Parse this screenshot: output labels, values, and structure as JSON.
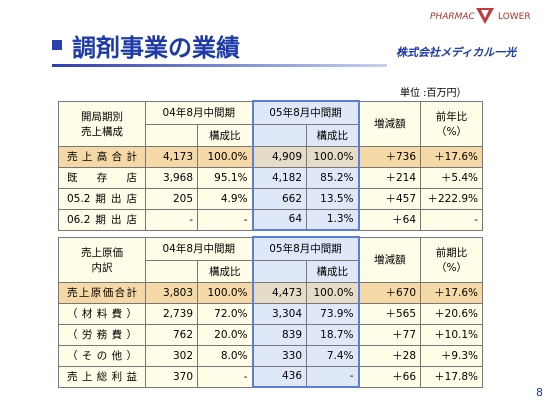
{
  "header": {
    "title": "調剤事業の業績",
    "logo_top": "PHARMAC",
    "logo_side": "LOWER",
    "company": "株式会社メディカル一光"
  },
  "unit": "単位 :百万円）",
  "tables": [
    {
      "header": {
        "label": [
          "開局期別",
          "売上構成"
        ],
        "period1": "04年8月中間期",
        "ratio1": "構成比",
        "period2": "05年8月中間期",
        "ratio2": "構成比",
        "change": "増減額",
        "growth": [
          "前年比",
          "（%）"
        ]
      },
      "rows": [
        [
          "売上高合計",
          "4,173",
          "100.0%",
          "4,909",
          "100.0%",
          "＋736",
          "＋17.6%"
        ],
        [
          "既　存　店",
          "3,968",
          "95.1%",
          "4,182",
          "85.2%",
          "＋214",
          "＋5.4%"
        ],
        [
          "05.2期出店",
          "205",
          "4.9%",
          "662",
          "13.5%",
          "＋457",
          "＋222.9%"
        ],
        [
          "06.2期出店",
          "-",
          "-",
          "64",
          "1.3%",
          "＋64",
          "-"
        ]
      ]
    },
    {
      "header": {
        "label": [
          "売上原価",
          "内訳"
        ],
        "period1": "04年8月中間期",
        "ratio1": "構成比",
        "period2": "05年8月中間期",
        "ratio2": "構成比",
        "change": "増減額",
        "growth": [
          "前期比",
          "（%）"
        ]
      },
      "rows": [
        [
          "売上原価合計",
          "3,803",
          "100.0%",
          "4,473",
          "100.0%",
          "＋670",
          "＋17.6%"
        ],
        [
          "（材料費）",
          "2,739",
          "72.0%",
          "3,304",
          "73.9%",
          "＋565",
          "＋20.6%"
        ],
        [
          "（労務費）",
          "762",
          "20.0%",
          "839",
          "18.7%",
          "＋77",
          "＋10.1%"
        ],
        [
          "（その他）",
          "302",
          "8.0%",
          "330",
          "7.4%",
          "＋28",
          "＋9.3%"
        ],
        [
          "売上総利益",
          "370",
          "-",
          "436",
          "-",
          "＋66",
          "＋17.8%"
        ]
      ]
    }
  ],
  "page_number": "8"
}
